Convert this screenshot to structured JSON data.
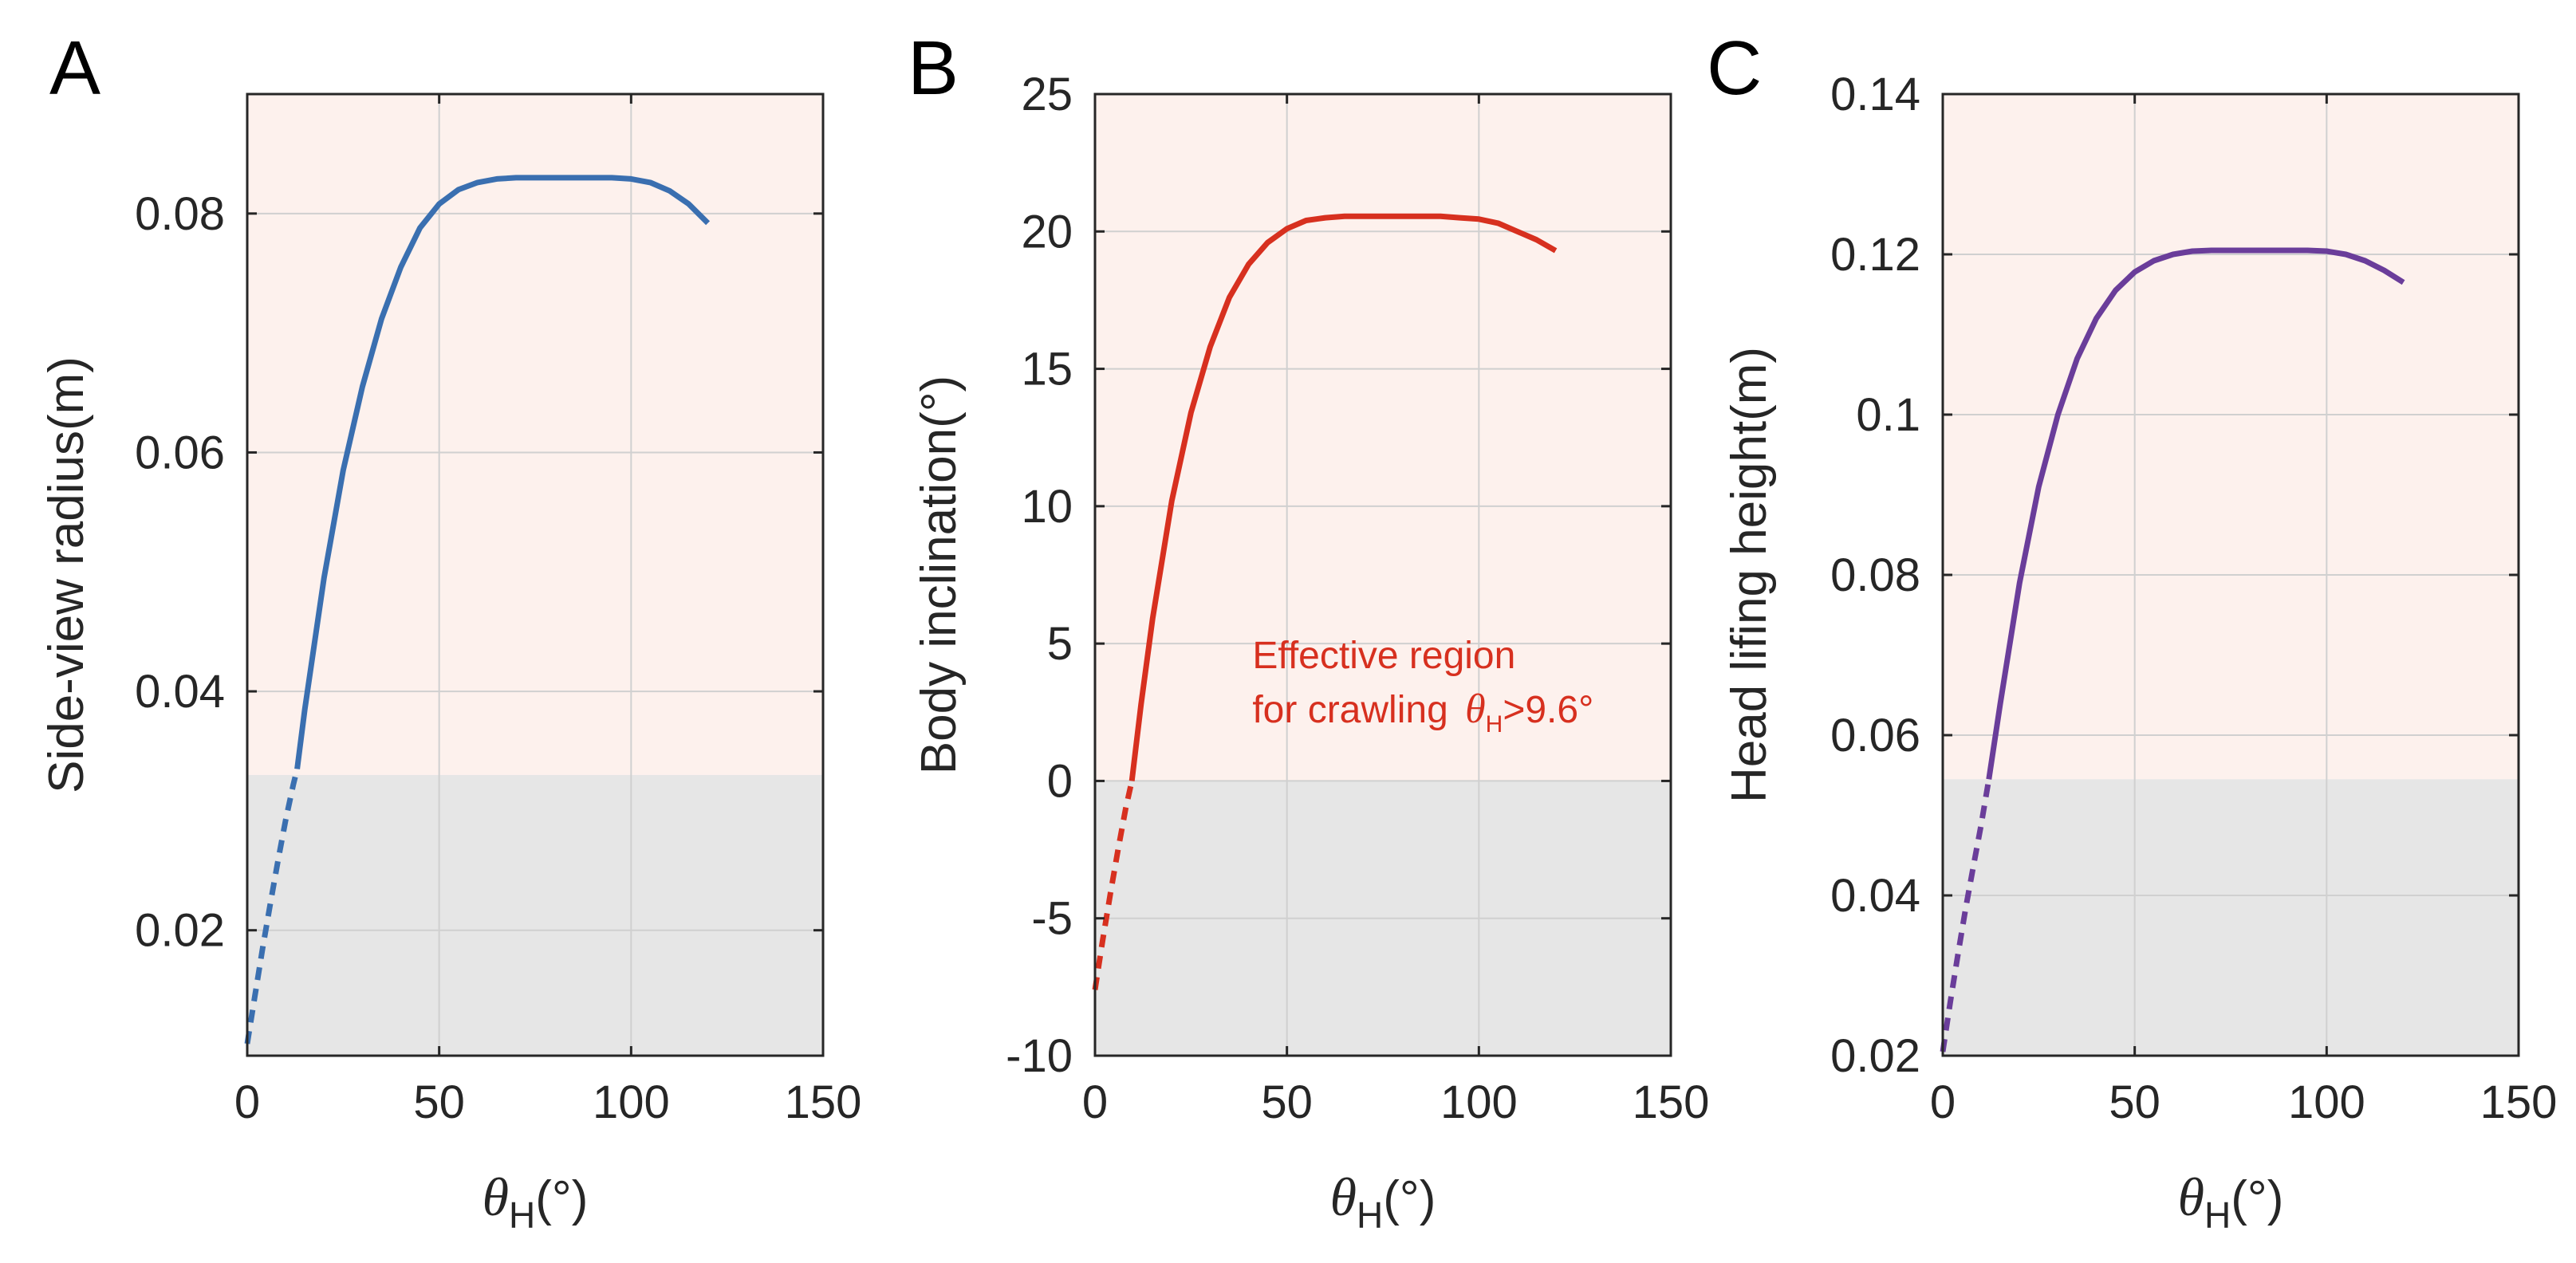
{
  "colors": {
    "effective_region": "#fdf1ed",
    "ineffective_region": "#e6e6e6",
    "grid": "#d0d0d0",
    "axis": "#262626",
    "annotation": "#d7301f"
  },
  "chart_data": [
    {
      "type": "line",
      "panel": "A",
      "xlabel": "θH(°)",
      "xlabel_symbol": "θ",
      "xlabel_subscript": "H",
      "xlabel_unit": "(°)",
      "ylabel": "Side-view radius(m)",
      "xlim": [
        0,
        150
      ],
      "ylim": [
        0.0095,
        0.09
      ],
      "xticks": [
        0,
        50,
        100,
        150
      ],
      "xtick_labels": [
        "0",
        "50",
        "100",
        "150"
      ],
      "yticks": [
        0.02,
        0.04,
        0.06,
        0.08
      ],
      "ytick_labels": [
        "0.02",
        "0.04",
        "0.06",
        "0.08"
      ],
      "grid": true,
      "color": "#3a6fb0",
      "effective_threshold_y": 0.033,
      "series": [
        {
          "name": "ineffective",
          "style": "dashed",
          "x": [
            0,
            2,
            4,
            6,
            8,
            10,
            12,
            13
          ],
          "y": [
            0.0105,
            0.0145,
            0.0185,
            0.0222,
            0.0258,
            0.0292,
            0.0322,
            0.0335
          ]
        },
        {
          "name": "effective",
          "style": "solid",
          "x": [
            13,
            15,
            20,
            25,
            30,
            35,
            40,
            45,
            50,
            55,
            60,
            65,
            70,
            75,
            80,
            85,
            90,
            95,
            100,
            105,
            110,
            115,
            120
          ],
          "y": [
            0.0335,
            0.0385,
            0.0495,
            0.0585,
            0.0655,
            0.0712,
            0.0755,
            0.0788,
            0.0808,
            0.082,
            0.0826,
            0.0829,
            0.083,
            0.083,
            0.083,
            0.083,
            0.083,
            0.083,
            0.0829,
            0.0826,
            0.0819,
            0.0808,
            0.0792
          ]
        }
      ]
    },
    {
      "type": "line",
      "panel": "B",
      "xlabel": "θH(°)",
      "xlabel_symbol": "θ",
      "xlabel_subscript": "H",
      "xlabel_unit": "(°)",
      "ylabel": "Body inclination(°)",
      "xlim": [
        0,
        150
      ],
      "ylim": [
        -10,
        25
      ],
      "xticks": [
        0,
        50,
        100,
        150
      ],
      "xtick_labels": [
        "0",
        "50",
        "100",
        "150"
      ],
      "yticks": [
        -10,
        -5,
        0,
        5,
        10,
        15,
        20,
        25
      ],
      "ytick_labels": [
        "-10",
        "-5",
        "0",
        "5",
        "10",
        "15",
        "20",
        "25"
      ],
      "grid": true,
      "color": "#d7301f",
      "effective_threshold_y": 0,
      "annotation": {
        "line1": "Effective region",
        "line2": "for crawling",
        "symbol": "θ",
        "subscript": "H",
        "suffix": ">9.6°",
        "x": 41,
        "y": 4.1
      },
      "series": [
        {
          "name": "ineffective",
          "style": "dashed",
          "x": [
            0,
            2,
            4,
            6,
            8,
            9.6
          ],
          "y": [
            -7.6,
            -5.8,
            -4.1,
            -2.5,
            -1.0,
            0
          ]
        },
        {
          "name": "effective",
          "style": "solid",
          "x": [
            9.6,
            12,
            15,
            20,
            25,
            30,
            35,
            40,
            45,
            50,
            55,
            60,
            65,
            70,
            75,
            80,
            85,
            90,
            95,
            100,
            105,
            110,
            115,
            120
          ],
          "y": [
            0,
            2.8,
            5.9,
            10.2,
            13.4,
            15.8,
            17.6,
            18.8,
            19.6,
            20.1,
            20.4,
            20.5,
            20.55,
            20.55,
            20.55,
            20.55,
            20.55,
            20.55,
            20.5,
            20.45,
            20.3,
            20.0,
            19.7,
            19.3
          ]
        }
      ]
    },
    {
      "type": "line",
      "panel": "C",
      "xlabel": "θH(°)",
      "xlabel_symbol": "θ",
      "xlabel_subscript": "H",
      "xlabel_unit": "(°)",
      "ylabel": "Head lifing height(m)",
      "xlim": [
        0,
        150
      ],
      "ylim": [
        0.02,
        0.14
      ],
      "xticks": [
        0,
        50,
        100,
        150
      ],
      "xtick_labels": [
        "0",
        "50",
        "100",
        "150"
      ],
      "yticks": [
        0.02,
        0.04,
        0.06,
        0.08,
        0.1,
        0.12,
        0.14
      ],
      "ytick_labels": [
        "0.02",
        "0.04",
        "0.06",
        "0.08",
        "0.1",
        "0.12",
        "0.14"
      ],
      "grid": true,
      "color": "#6a3d9a",
      "effective_threshold_y": 0.0545,
      "series": [
        {
          "name": "ineffective",
          "style": "dashed",
          "x": [
            0,
            2,
            4,
            6,
            8,
            10,
            12
          ],
          "y": [
            0.0205,
            0.0268,
            0.0328,
            0.0385,
            0.0437,
            0.0488,
            0.0545
          ]
        },
        {
          "name": "effective",
          "style": "solid",
          "x": [
            12,
            15,
            20,
            25,
            30,
            35,
            40,
            45,
            50,
            55,
            60,
            65,
            70,
            75,
            80,
            85,
            90,
            95,
            100,
            105,
            110,
            115,
            120
          ],
          "y": [
            0.0545,
            0.064,
            0.079,
            0.091,
            0.1,
            0.107,
            0.112,
            0.1155,
            0.1178,
            0.1192,
            0.12,
            0.1204,
            0.1205,
            0.1205,
            0.1205,
            0.1205,
            0.1205,
            0.1205,
            0.1204,
            0.12,
            0.1192,
            0.118,
            0.1165
          ]
        }
      ]
    }
  ]
}
